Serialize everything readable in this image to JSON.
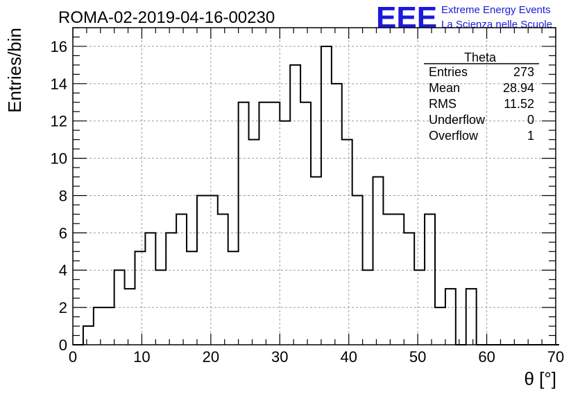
{
  "header": {
    "run_title": "ROMA-02-2019-04-16-00230",
    "logo": "EEE",
    "logo_line1": "Extreme Energy Events",
    "logo_line2": "La Scienza nelle Scuole",
    "logo_color": "#1a1adb"
  },
  "stats": {
    "title": "Theta",
    "rows": [
      {
        "label": "Entries",
        "value": "273"
      },
      {
        "label": "Mean",
        "value": "28.94"
      },
      {
        "label": "RMS",
        "value": "11.52"
      },
      {
        "label": "Underflow",
        "value": "0"
      },
      {
        "label": "Overflow",
        "value": "1"
      }
    ]
  },
  "chart_data": {
    "type": "bar",
    "style": "step-histogram",
    "title": "ROMA-02-2019-04-16-00230",
    "xlabel": "θ [°]",
    "ylabel": "Entries/bin",
    "xlim": [
      0,
      70
    ],
    "ylim": [
      0,
      17
    ],
    "xticks": [
      0,
      10,
      20,
      30,
      40,
      50,
      60,
      70
    ],
    "yticks": [
      0,
      2,
      4,
      6,
      8,
      10,
      12,
      14,
      16
    ],
    "grid": true,
    "bin_width": 1.5,
    "bin_edges_start": 0,
    "values": [
      0,
      1,
      2,
      2,
      4,
      3,
      5,
      6,
      4,
      6,
      7,
      5,
      8,
      8,
      7,
      5,
      13,
      11,
      13,
      13,
      12,
      15,
      13,
      9,
      16,
      14,
      11,
      8,
      4,
      9,
      7,
      7,
      6,
      4,
      7,
      2,
      3,
      0,
      3,
      0,
      0,
      0,
      0,
      0,
      0,
      0,
      0
    ]
  }
}
